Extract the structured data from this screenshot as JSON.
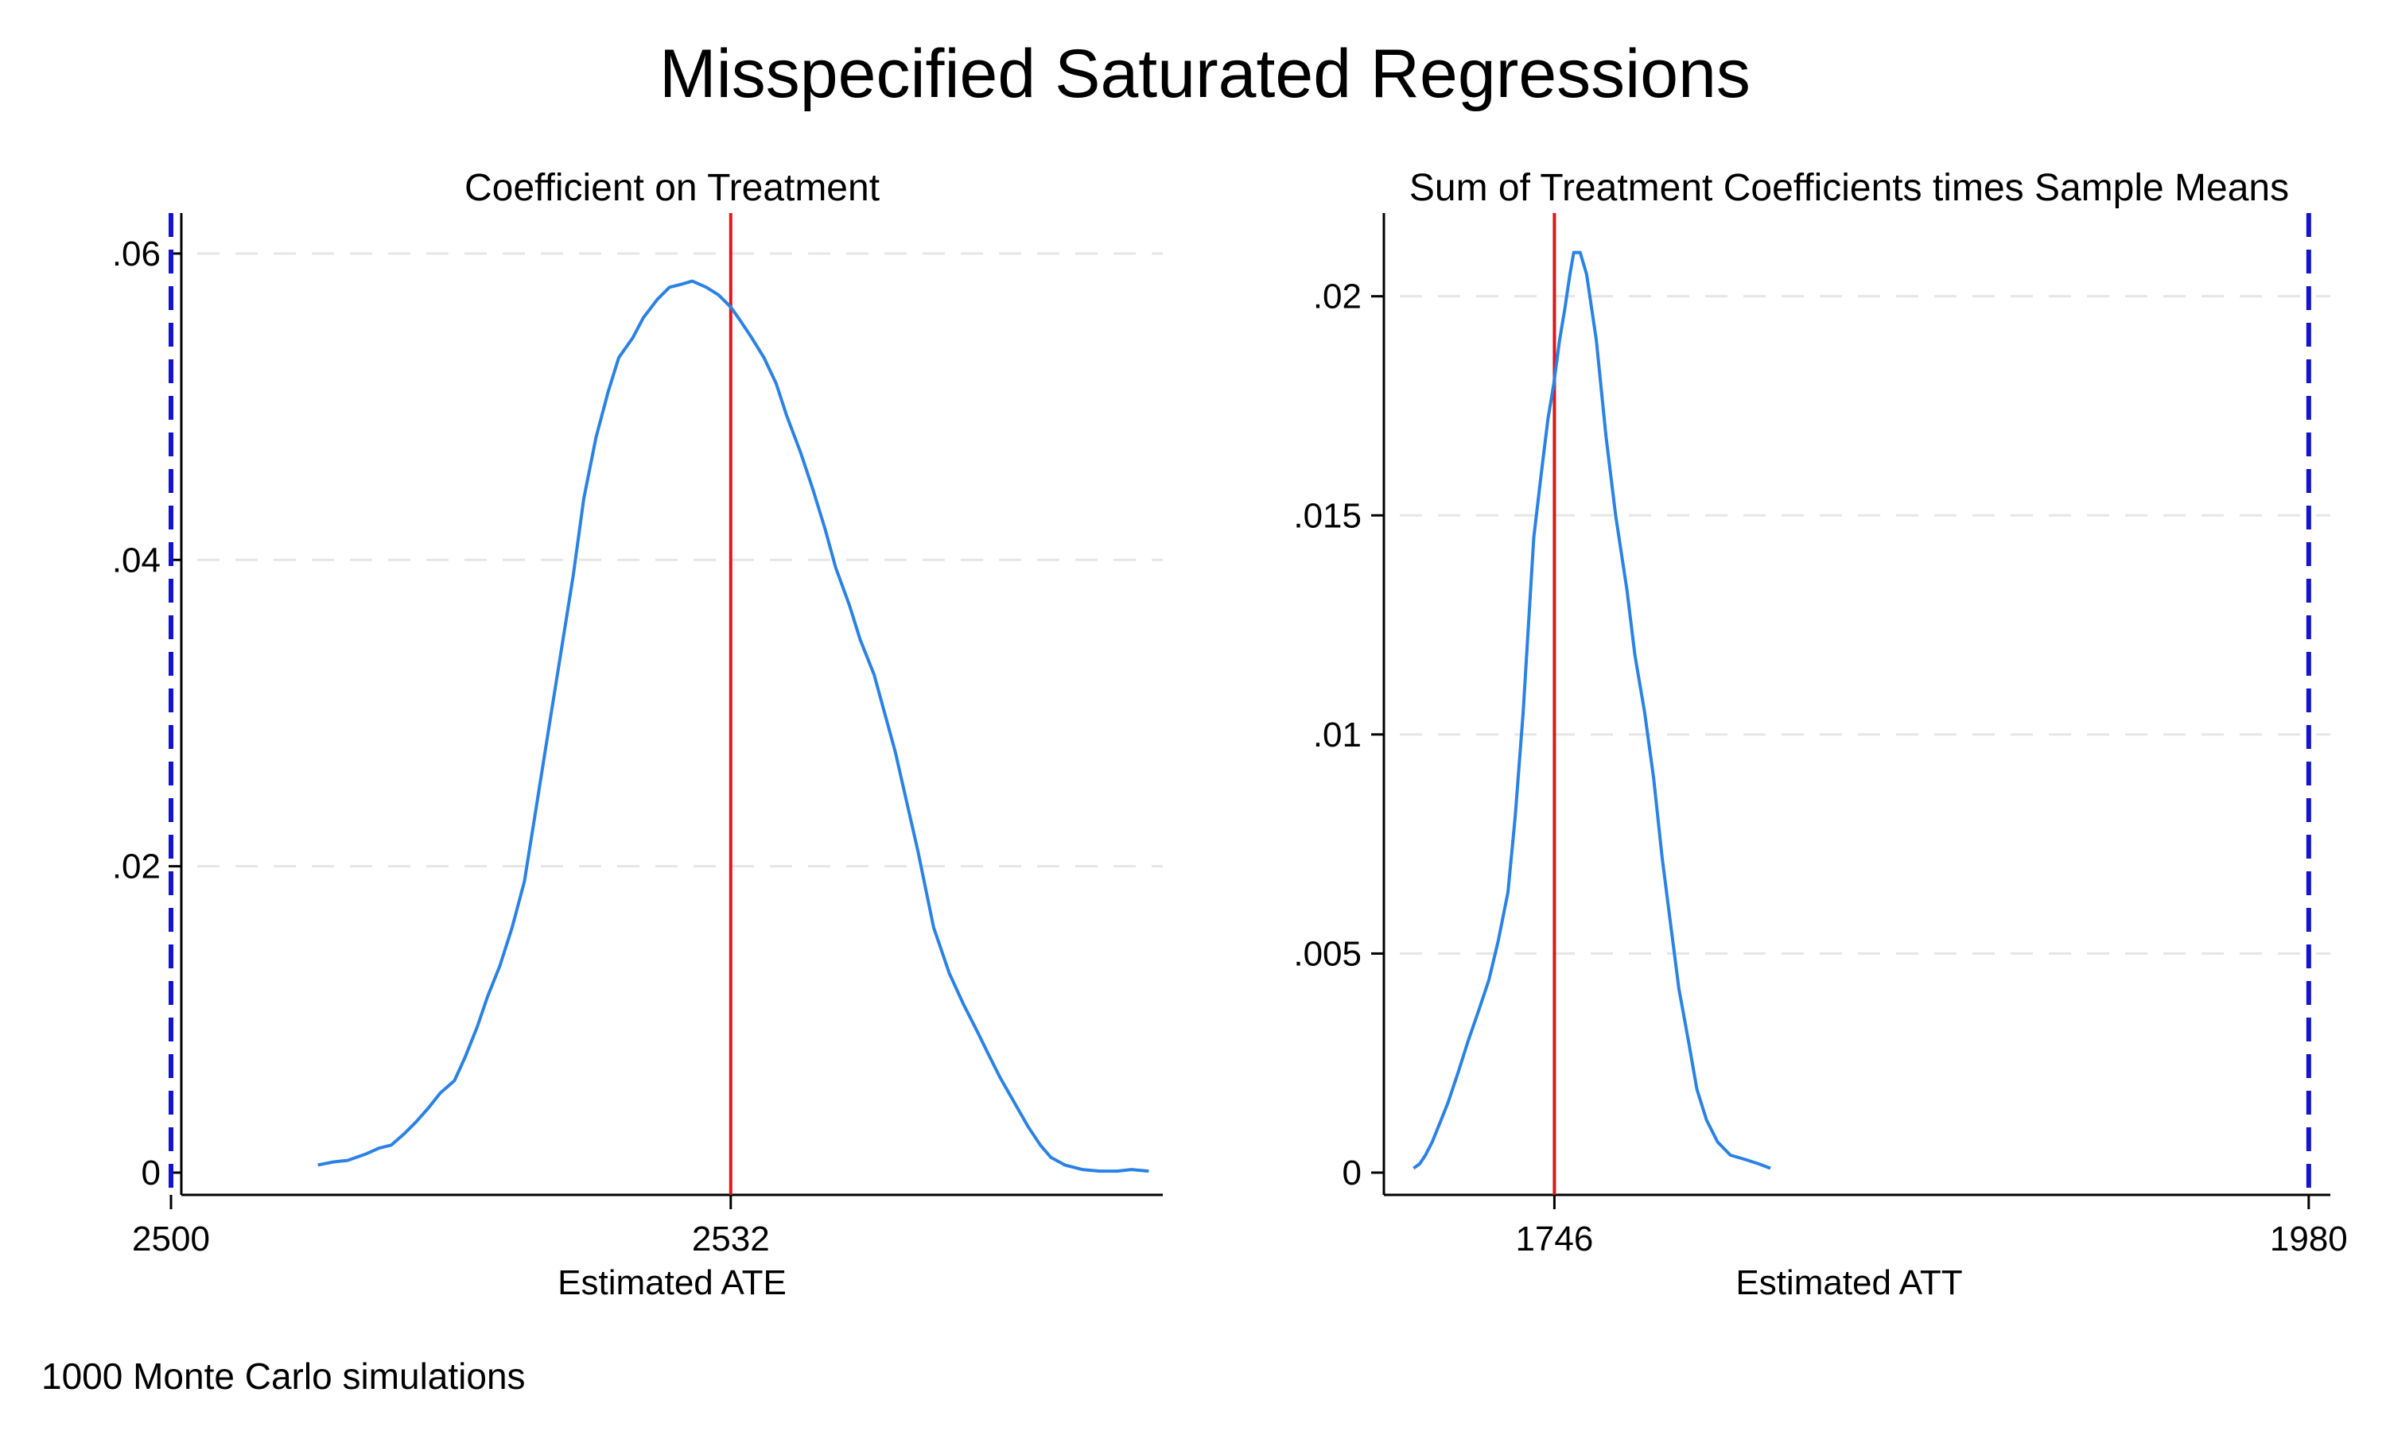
{
  "title": "Misspecified Saturated Regressions",
  "note": "1000 Monte Carlo simulations",
  "colors": {
    "density": "#2a82e4",
    "estimate_line": "#e0141e",
    "true_line": "#1414d0",
    "grid": "#e6e6e6"
  },
  "chart_data": [
    {
      "type": "line",
      "title": "Coefficient on Treatment",
      "xlabel": "Estimated ATE",
      "ylabel": "",
      "xlim": [
        2500,
        2556.7
      ],
      "ylim": [
        0,
        0.0615
      ],
      "grid": true,
      "x_ticks": [
        2500,
        2532
      ],
      "x_tick_labels": [
        "2500",
        "2532"
      ],
      "y_ticks": [
        0,
        0.02,
        0.04,
        0.06
      ],
      "y_tick_labels": [
        "0",
        ".02",
        ".04",
        ".06"
      ],
      "vlines": [
        {
          "x": 2532,
          "style": "solid",
          "color": "#e0141e"
        },
        {
          "x": 2500,
          "style": "dashed",
          "color": "#1414d0"
        }
      ],
      "series": [
        {
          "x": [
            2508.4,
            2509.3,
            2510.1,
            2511.1,
            2511.9,
            2512.6,
            2513.3,
            2514.0,
            2514.7,
            2515.4,
            2516.2,
            2516.8,
            2517.5,
            2518.1,
            2518.8,
            2519.5,
            2520.2,
            2520.9,
            2521.6,
            2522.3,
            2523.0,
            2523.6,
            2524.3,
            2525.0,
            2525.6,
            2526.4,
            2527.0,
            2527.8,
            2528.5,
            2529.2,
            2529.8,
            2530.6,
            2531.3,
            2532.0,
            2532.5,
            2533.2,
            2533.9,
            2534.6,
            2535.2,
            2536.0,
            2536.7,
            2537.4,
            2538.0,
            2538.8,
            2539.4,
            2540.2,
            2541.4,
            2542.7,
            2543.6,
            2544.5,
            2545.3,
            2546.1,
            2546.7,
            2547.4,
            2548.2,
            2549.0,
            2549.7,
            2550.3,
            2551.1,
            2552.1,
            2553.1,
            2554.1,
            2554.9,
            2555.9
          ],
          "y": [
            0.0005,
            0.0007,
            0.0008,
            0.0012,
            0.0016,
            0.0018,
            0.0025,
            0.0033,
            0.0042,
            0.0052,
            0.006,
            0.0075,
            0.0095,
            0.0115,
            0.0135,
            0.016,
            0.019,
            0.024,
            0.029,
            0.034,
            0.039,
            0.044,
            0.048,
            0.051,
            0.0532,
            0.0545,
            0.0558,
            0.057,
            0.0578,
            0.058,
            0.0582,
            0.0578,
            0.0573,
            0.0565,
            0.0557,
            0.0545,
            0.0532,
            0.0515,
            0.0494,
            0.047,
            0.0446,
            0.042,
            0.0395,
            0.037,
            0.0348,
            0.0325,
            0.0275,
            0.021,
            0.016,
            0.013,
            0.011,
            0.0092,
            0.0078,
            0.0062,
            0.0046,
            0.003,
            0.0018,
            0.001,
            0.0005,
            0.0002,
            0.0001,
            0.0001,
            0.0002,
            0.0001
          ]
        }
      ]
    },
    {
      "type": "line",
      "title": "Sum of Treatment Coefficients times Sample Means",
      "xlabel": "Estimated ATT",
      "ylabel": "",
      "xlim": [
        1693.1,
        1986.7
      ],
      "ylim": [
        0,
        0.0215
      ],
      "grid": true,
      "x_ticks": [
        1746,
        1980
      ],
      "x_tick_labels": [
        "1746",
        "1980"
      ],
      "y_ticks": [
        0,
        0.005,
        0.01,
        0.015,
        0.02
      ],
      "y_tick_labels": [
        "0",
        ".005",
        ".01",
        ".015",
        ".02"
      ],
      "vlines": [
        {
          "x": 1746,
          "style": "solid",
          "color": "#e0141e"
        },
        {
          "x": 1980,
          "style": "dashed",
          "color": "#1414d0"
        }
      ],
      "series": [
        {
          "x": [
            1702.3,
            1704.2,
            1706.0,
            1708.1,
            1710.3,
            1713.0,
            1716.2,
            1719.2,
            1722.5,
            1725.7,
            1728.6,
            1731.6,
            1733.8,
            1736.3,
            1739.6,
            1742.0,
            1744.0,
            1745.8,
            1747.6,
            1749.2,
            1750.8,
            1752.0,
            1754.0,
            1756.0,
            1759.0,
            1762.0,
            1765.0,
            1768.5,
            1771.0,
            1774.0,
            1776.8,
            1779.4,
            1782.0,
            1784.6,
            1787.6,
            1790.2,
            1793.2,
            1796.6,
            1800.6,
            1805.2,
            1809.4,
            1813.0
          ],
          "y": [
            0.0001,
            0.0002,
            0.0004,
            0.0007,
            0.0011,
            0.0016,
            0.0023,
            0.003,
            0.0037,
            0.0044,
            0.0053,
            0.0064,
            0.0081,
            0.0105,
            0.0145,
            0.016,
            0.0172,
            0.018,
            0.019,
            0.0197,
            0.0205,
            0.021,
            0.021,
            0.0205,
            0.019,
            0.0168,
            0.015,
            0.0133,
            0.0118,
            0.0105,
            0.009,
            0.0072,
            0.0057,
            0.0042,
            0.003,
            0.0019,
            0.0012,
            0.0007,
            0.0004,
            0.0003,
            0.0002,
            0.0001
          ]
        }
      ]
    }
  ]
}
